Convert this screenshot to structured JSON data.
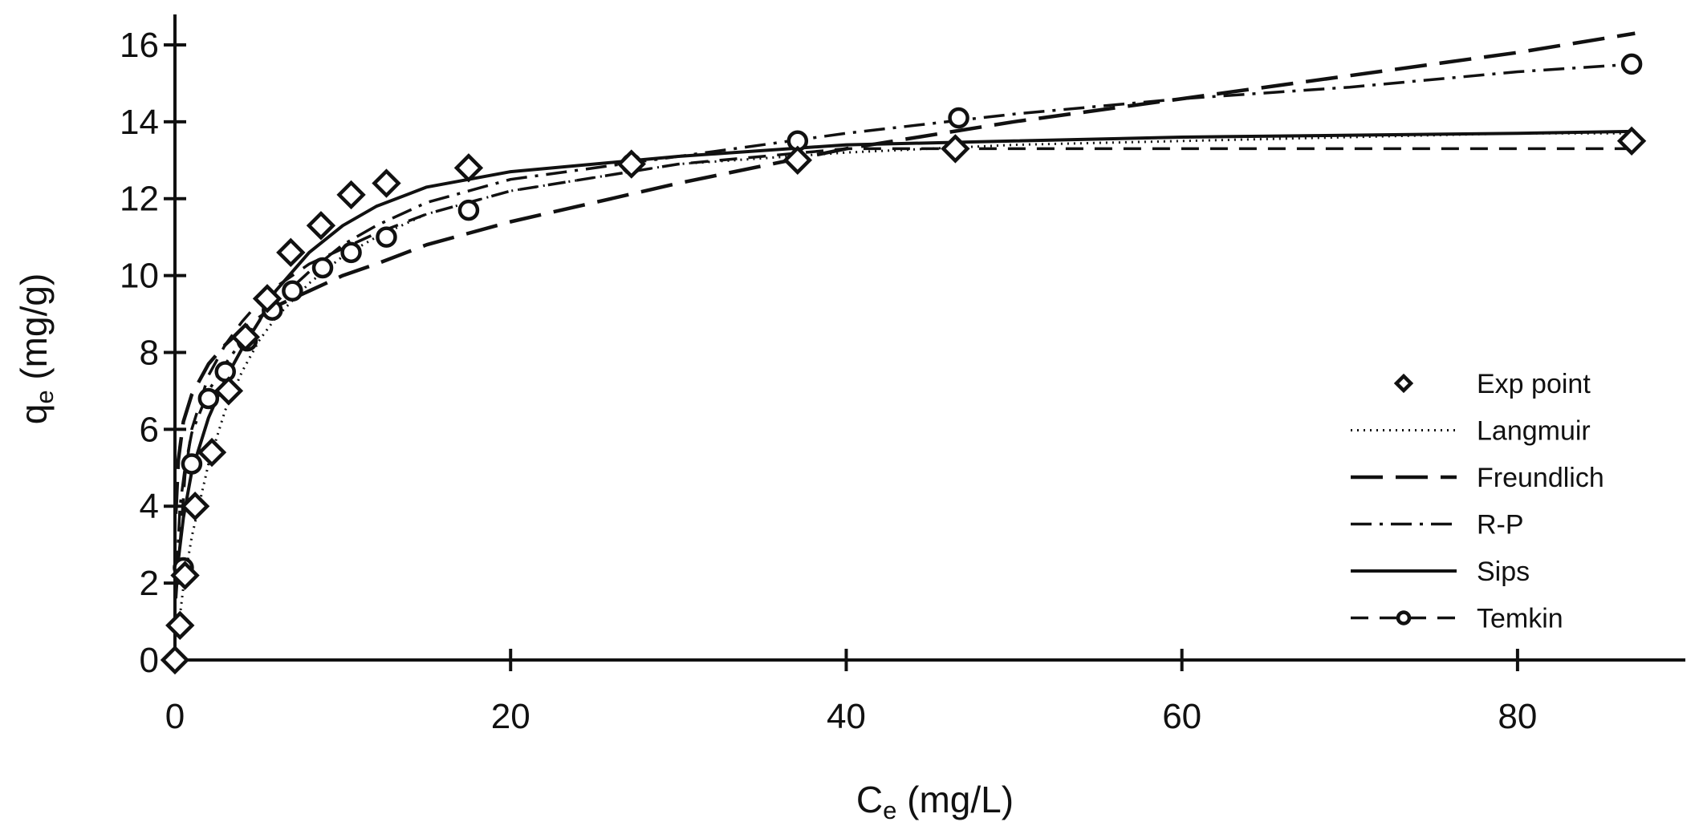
{
  "chart_data": {
    "type": "scatter",
    "title": "",
    "xlabel": {
      "base": "C",
      "sub": "e",
      "rest": " (mg/L)"
    },
    "ylabel": {
      "base": "q",
      "sub": "e",
      "rest": " (mg/g)"
    },
    "xlim": [
      0,
      90
    ],
    "ylim": [
      0,
      17
    ],
    "xticks": [
      0,
      20,
      40,
      60,
      80
    ],
    "yticks": [
      0,
      2,
      4,
      6,
      8,
      10,
      12,
      14,
      16
    ],
    "grid": false,
    "legend_position": "right",
    "legend": [
      {
        "label": "Exp point",
        "style": "diamond"
      },
      {
        "label": "Langmuir",
        "style": "dotted"
      },
      {
        "label": "Freundlich",
        "style": "long-dash"
      },
      {
        "label": "R-P",
        "style": "dash-dot"
      },
      {
        "label": "Sips",
        "style": "solid"
      },
      {
        "label": "Temkin",
        "style": "dash-circle"
      }
    ],
    "exp_points": {
      "x": [
        0,
        0.3,
        0.6,
        1.2,
        2.2,
        3.2,
        4.2,
        5.5,
        6.9,
        8.7,
        10.5,
        12.6,
        17.5,
        27.2,
        37.1,
        46.5,
        86.8
      ],
      "y": [
        0,
        0.9,
        2.2,
        4.0,
        5.4,
        7.0,
        8.4,
        9.4,
        10.6,
        11.3,
        12.1,
        12.4,
        12.8,
        12.9,
        13.0,
        13.3,
        13.5
      ]
    },
    "temkin_points": {
      "x": [
        0.5,
        1.0,
        2.0,
        3.0,
        4.3,
        5.8,
        7.0,
        8.8,
        10.5,
        12.6,
        17.5,
        27.2,
        37.1,
        46.7,
        86.8
      ],
      "y": [
        2.4,
        5.1,
        6.8,
        7.5,
        8.3,
        9.1,
        9.6,
        10.2,
        10.6,
        11.0,
        11.7,
        12.9,
        13.5,
        14.1,
        15.5
      ]
    },
    "series": [
      {
        "name": "Langmuir",
        "x": [
          0.2,
          0.5,
          1,
          2,
          3,
          4,
          5,
          6,
          8,
          10,
          12,
          15,
          20,
          30,
          40,
          50,
          60,
          70,
          80,
          87
        ],
        "y": [
          0.8,
          1.9,
          3.2,
          5.1,
          6.5,
          7.5,
          8.3,
          8.9,
          9.8,
          10.5,
          11.0,
          11.6,
          12.2,
          12.9,
          13.2,
          13.4,
          13.5,
          13.6,
          13.7,
          13.7
        ]
      },
      {
        "name": "Freundlich",
        "x": [
          0.05,
          0.2,
          0.5,
          1,
          2,
          3,
          4,
          5,
          6,
          8,
          10,
          12,
          15,
          20,
          30,
          40,
          50,
          60,
          70,
          80,
          87
        ],
        "y": [
          3.8,
          5.2,
          6.2,
          6.9,
          7.7,
          8.2,
          8.6,
          8.9,
          9.2,
          9.6,
          10.0,
          10.3,
          10.8,
          11.4,
          12.4,
          13.3,
          14.0,
          14.6,
          15.2,
          15.8,
          16.3
        ]
      },
      {
        "name": "R-P",
        "x": [
          0.1,
          0.3,
          0.6,
          1,
          2,
          3,
          4,
          5,
          6,
          8,
          10,
          12,
          15,
          20,
          30,
          40,
          50,
          60,
          70,
          80,
          87
        ],
        "y": [
          2.3,
          4.0,
          5.0,
          5.9,
          7.0,
          7.7,
          8.3,
          8.8,
          9.3,
          10.1,
          10.8,
          11.3,
          11.9,
          12.5,
          13.1,
          13.7,
          14.2,
          14.6,
          14.9,
          15.3,
          15.5
        ]
      },
      {
        "name": "Sips",
        "x": [
          0.05,
          0.2,
          0.5,
          1,
          2,
          3,
          4,
          5,
          6,
          8,
          10,
          12,
          15,
          20,
          30,
          40,
          50,
          60,
          70,
          80,
          87
        ],
        "y": [
          1.6,
          2.6,
          3.7,
          4.9,
          6.3,
          7.3,
          8.1,
          8.8,
          9.6,
          10.6,
          11.3,
          11.8,
          12.3,
          12.7,
          13.1,
          13.4,
          13.5,
          13.6,
          13.65,
          13.7,
          13.75
        ]
      },
      {
        "name": "Temkin",
        "x": [
          0.3,
          0.6,
          1,
          2,
          3,
          4,
          5,
          6,
          8,
          10,
          12,
          15,
          20,
          30,
          40,
          50,
          60,
          70,
          80,
          87
        ],
        "y": [
          3.0,
          4.8,
          6.0,
          7.4,
          8.2,
          8.8,
          9.3,
          9.7,
          10.3,
          10.7,
          11.1,
          11.6,
          12.2,
          12.9,
          13.3,
          13.3,
          13.3,
          13.3,
          13.3,
          13.3
        ]
      }
    ]
  }
}
